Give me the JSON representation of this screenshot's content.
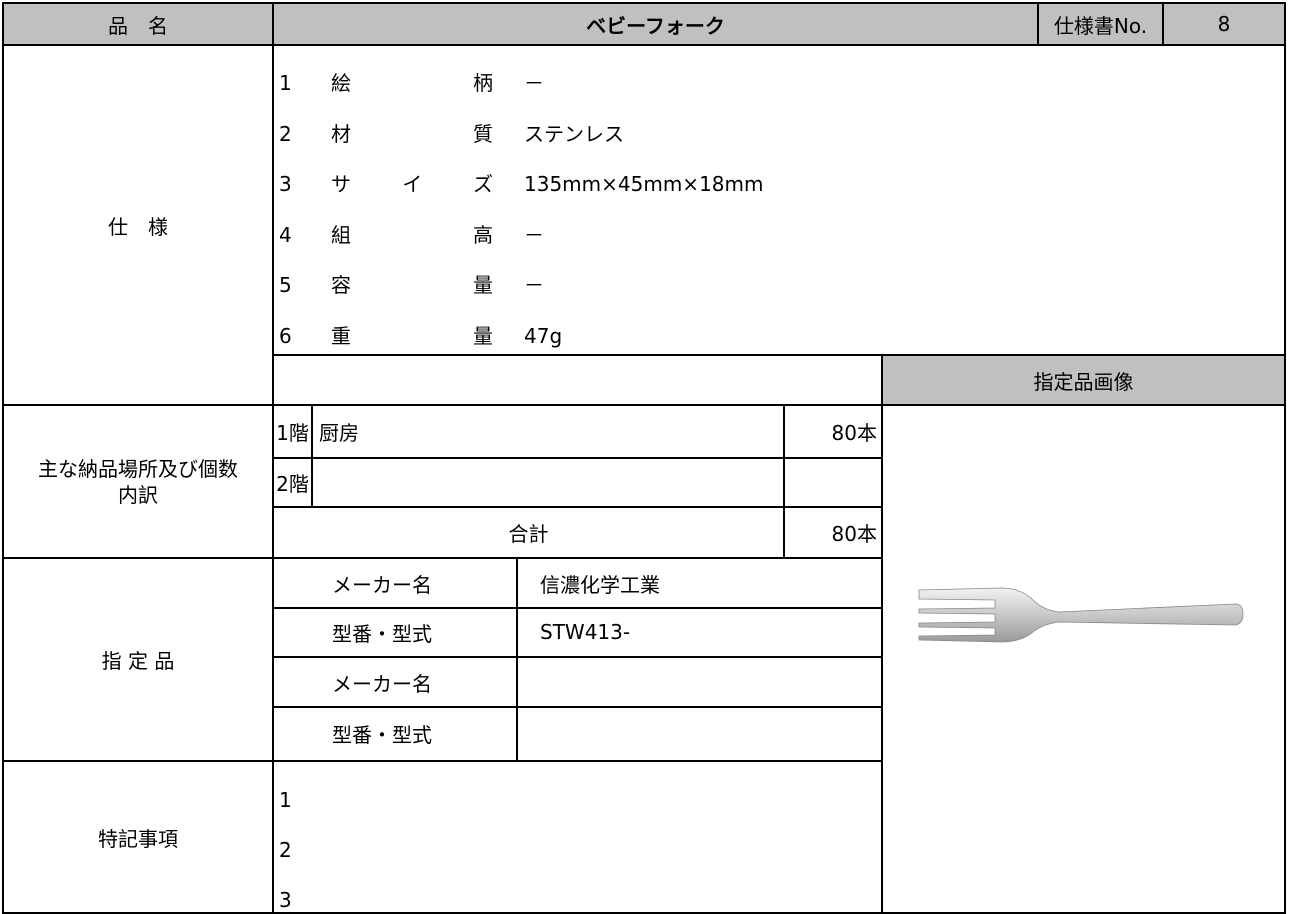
{
  "header": {
    "label": "品　名",
    "title": "ベビーフォーク",
    "spec_no_label": "仕様書No.",
    "spec_no": "8"
  },
  "specs": {
    "label": "仕　様",
    "items": [
      {
        "no": "1",
        "label": "絵柄",
        "value": "－"
      },
      {
        "no": "2",
        "label": "材質",
        "value": "ステンレス"
      },
      {
        "no": "3",
        "label": "サイズ",
        "value": "135mm×45mm×18mm"
      },
      {
        "no": "4",
        "label": "組高",
        "value": "－"
      },
      {
        "no": "5",
        "label": "容量",
        "value": "－"
      },
      {
        "no": "6",
        "label": "重量",
        "value": "47g"
      }
    ]
  },
  "image_label": "指定品画像",
  "delivery": {
    "label": "主な納品場所及び個数内訳",
    "rows": [
      {
        "floor": "1階",
        "place": "厨房",
        "count": "80本"
      },
      {
        "floor": "2階",
        "place": "",
        "count": ""
      }
    ],
    "total_label": "合計",
    "total": "80本"
  },
  "designated": {
    "label": "指 定 品",
    "rows": [
      {
        "label": "メーカー名",
        "value": "信濃化学工業"
      },
      {
        "label": "型番・型式",
        "value": "STW413-"
      },
      {
        "label": "メーカー名",
        "value": ""
      },
      {
        "label": "型番・型式",
        "value": ""
      }
    ]
  },
  "notes": {
    "label": "特記事項",
    "items": [
      "1",
      "2",
      "3"
    ]
  }
}
